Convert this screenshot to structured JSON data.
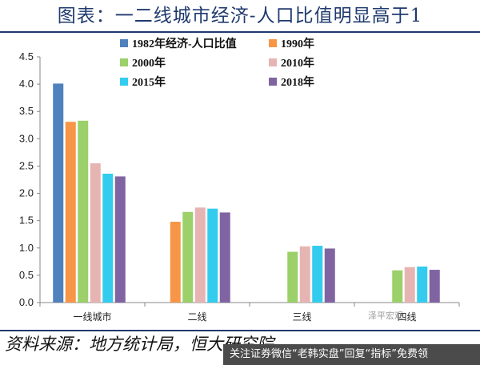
{
  "title": "图表：一二线城市经济-人口比值明显高于1",
  "source": "资料来源：地方统计局，恒大研究院",
  "watermark": "泽平宏观",
  "banner": "关注证券微信“老韩实盘”回复“指标”免费领",
  "chart_data": {
    "type": "bar",
    "categories": [
      "一线城市",
      "二线",
      "三线",
      "四线"
    ],
    "series": [
      {
        "name": "1982年经济-人口比值",
        "color": "#4f81bd",
        "values": [
          4.01,
          null,
          null,
          null
        ]
      },
      {
        "name": "1990年",
        "color": "#f79646",
        "values": [
          3.31,
          1.48,
          null,
          null
        ]
      },
      {
        "name": "2000年",
        "color": "#9bd06a",
        "values": [
          3.33,
          1.66,
          0.93,
          0.59
        ]
      },
      {
        "name": "2010年",
        "color": "#e6b5b3",
        "values": [
          2.55,
          1.74,
          1.03,
          0.65
        ]
      },
      {
        "name": "2015年",
        "color": "#33ccee",
        "values": [
          2.36,
          1.72,
          1.04,
          0.66
        ]
      },
      {
        "name": "2018年",
        "color": "#8064a2",
        "values": [
          2.31,
          1.65,
          0.99,
          0.6
        ]
      }
    ],
    "yticks": [
      "0.0",
      "0.5",
      "1.0",
      "1.5",
      "2.0",
      "2.5",
      "3.0",
      "3.5",
      "4.0",
      "4.5"
    ],
    "ylim": [
      0,
      4.5
    ],
    "legend": "top, two columns"
  }
}
